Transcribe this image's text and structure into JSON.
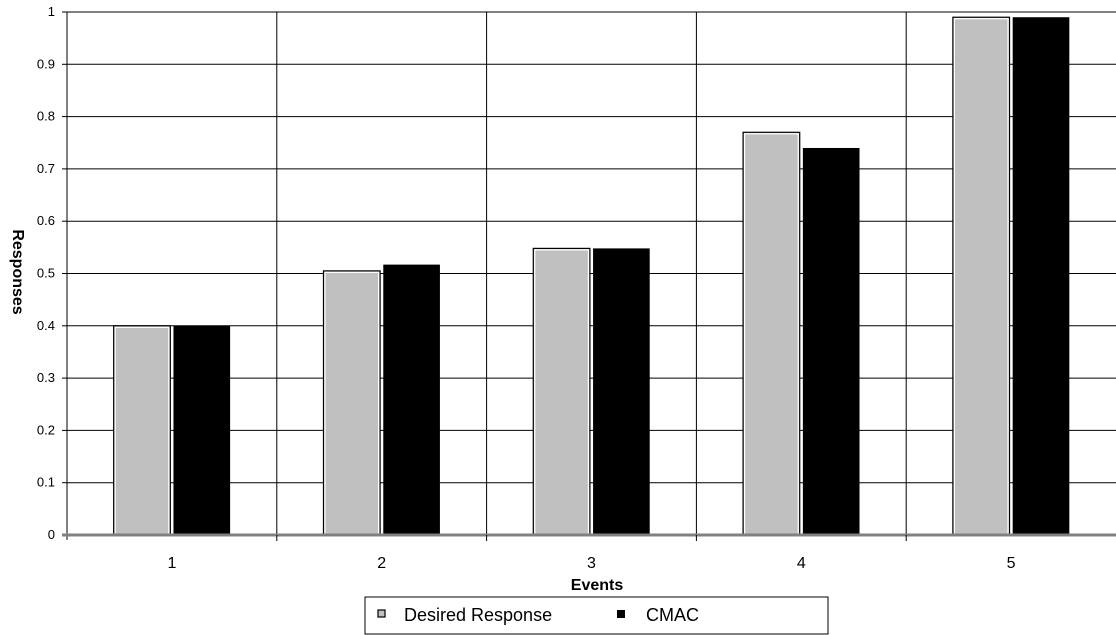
{
  "chart_data": {
    "type": "bar",
    "title": "",
    "xlabel": "Events",
    "ylabel": "Responses",
    "categories": [
      "1",
      "2",
      "3",
      "4",
      "5"
    ],
    "ylim": [
      0,
      1
    ],
    "yticks": [
      "0",
      "0.1",
      "0.2",
      "0.3",
      "0.4",
      "0.5",
      "0.6",
      "0.7",
      "0.8",
      "0.9",
      "1"
    ],
    "grid": true,
    "legend_position": "bottom",
    "series": [
      {
        "name": "Desired Response",
        "values": [
          0.4,
          0.505,
          0.548,
          0.77,
          0.99
        ],
        "color": "#c0c0c0"
      },
      {
        "name": "CMAC",
        "values": [
          0.4,
          0.517,
          0.548,
          0.74,
          0.99
        ],
        "color": "#000000"
      }
    ]
  }
}
